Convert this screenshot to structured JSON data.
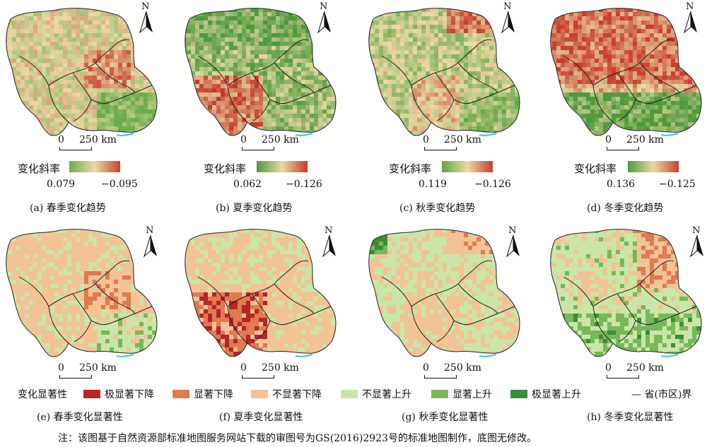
{
  "maps": [
    {
      "id": "a",
      "caption": "(a) 春季变化趋势",
      "legend_title": "变化斜率",
      "min": "0.079",
      "max": "−0.095",
      "scale_zero": "0",
      "scale_label": "250 km",
      "north": "N",
      "palette": [
        "#6bad4a",
        "#e9d9a6",
        "#c8402e"
      ],
      "dominant": "mixed"
    },
    {
      "id": "b",
      "caption": "(b) 夏季变化趋势",
      "legend_title": "变化斜率",
      "min": "0.062",
      "max": "−0.126",
      "scale_zero": "0",
      "scale_label": "250 km",
      "north": "N",
      "palette": [
        "#4e9a3c",
        "#e9d9a6",
        "#c23a2a"
      ],
      "dominant": "green"
    },
    {
      "id": "c",
      "caption": "(c) 秋季变化趋势",
      "legend_title": "变化斜率",
      "min": "0.119",
      "max": "−0.126",
      "scale_zero": "0",
      "scale_label": "250 km",
      "north": "N",
      "palette": [
        "#5ea544",
        "#e9d9a6",
        "#c8402e"
      ],
      "dominant": "green"
    },
    {
      "id": "d",
      "caption": "(d) 冬季变化趋势",
      "legend_title": "变化斜率",
      "min": "0.136",
      "max": "−0.125",
      "scale_zero": "0",
      "scale_label": "250 km",
      "north": "N",
      "palette": [
        "#4e9a3c",
        "#e9d9a6",
        "#c8402e"
      ],
      "dominant": "red"
    },
    {
      "id": "e",
      "caption": "(e) 春季变化显著性",
      "scale_zero": "0",
      "scale_label": "250 km",
      "north": "N"
    },
    {
      "id": "f",
      "caption": "(f) 夏季变化显著性",
      "scale_zero": "0",
      "scale_label": "250 km",
      "north": "N"
    },
    {
      "id": "g",
      "caption": "(g) 秋季变化显著性",
      "scale_zero": "0",
      "scale_label": "250 km",
      "north": "N"
    },
    {
      "id": "h",
      "caption": "(h) 冬季变化显著性",
      "scale_zero": "0",
      "scale_label": "250 km",
      "north": "N"
    }
  ],
  "significance_legend": {
    "title": "变化显著性",
    "items": [
      {
        "label": "极显著下降",
        "color": "#b5252a"
      },
      {
        "label": "显著下降",
        "color": "#e07a4f"
      },
      {
        "label": "不显著下降",
        "color": "#f2c394"
      },
      {
        "label": "不显著上升",
        "color": "#c9e6a8"
      },
      {
        "label": "显著上升",
        "color": "#78b85a"
      },
      {
        "label": "极显著上升",
        "color": "#3d8c3a"
      }
    ],
    "boundary_label": "— 省(市区)界"
  },
  "note": "注：该图基于自然资源部标准地图服务网站下载的审图号为GS(2016)2923号的标准地图制作，底图无修改。"
}
